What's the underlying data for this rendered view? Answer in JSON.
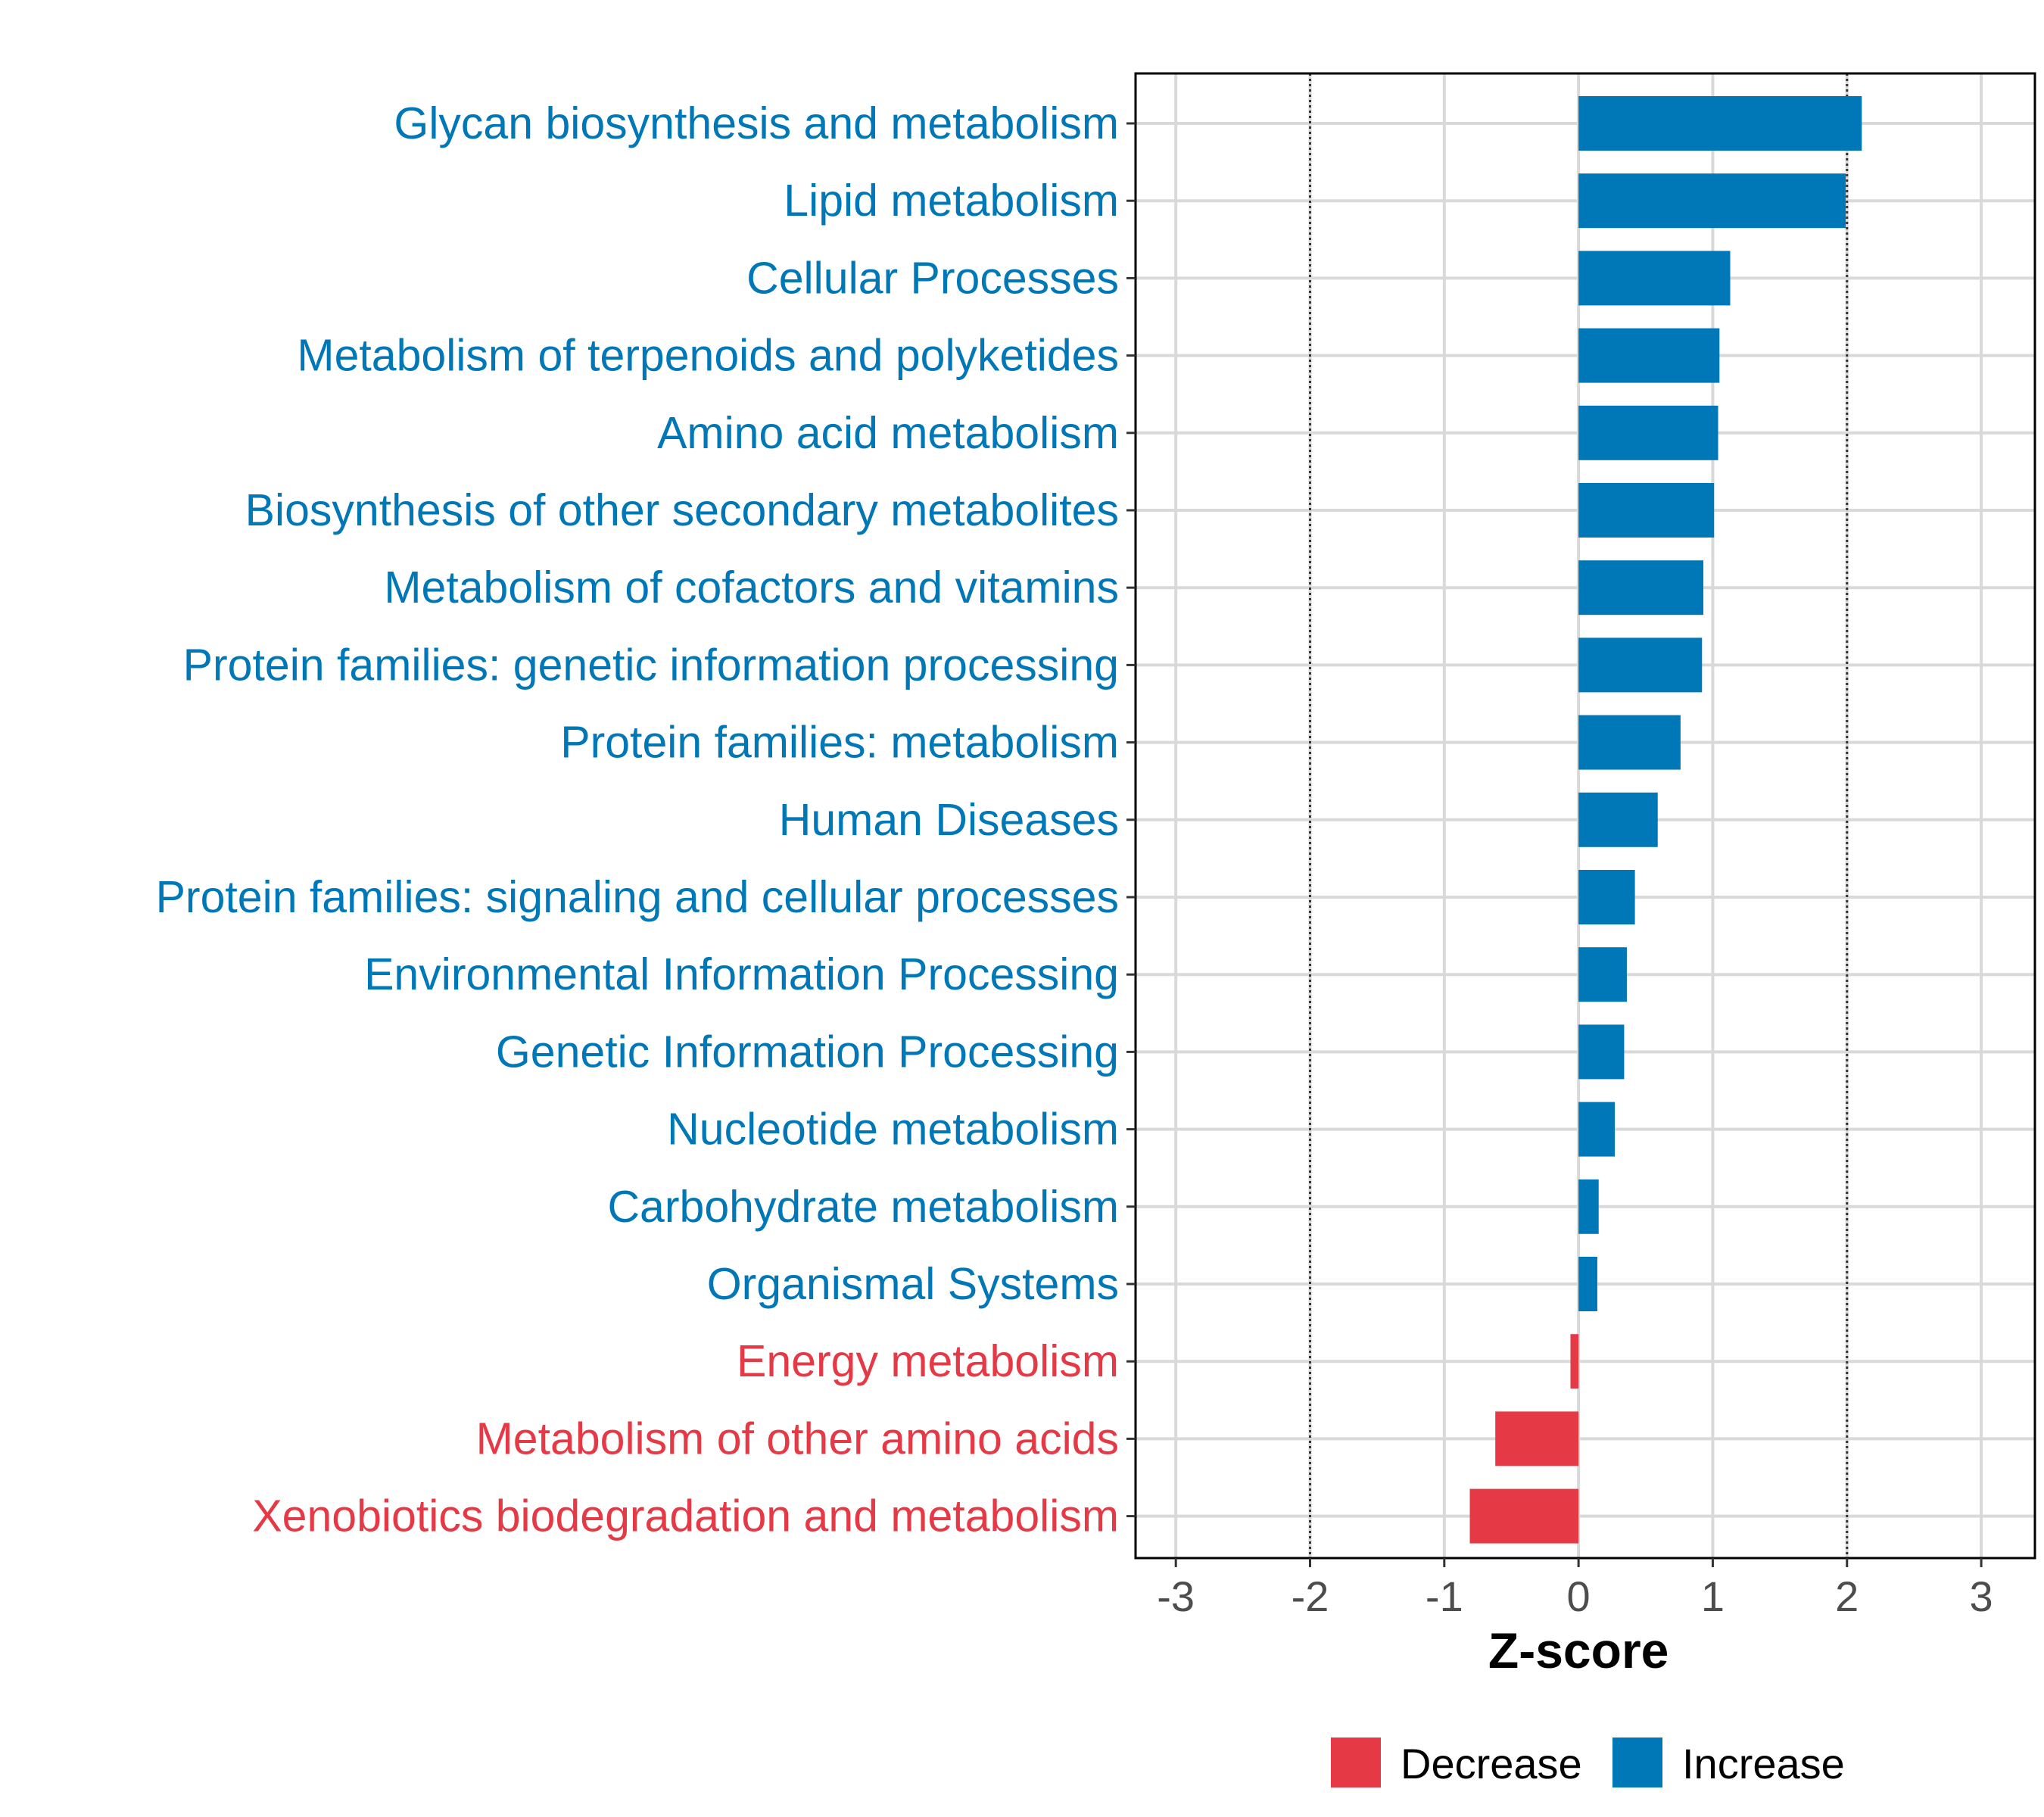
{
  "colors": {
    "increase": "#0077b6",
    "decrease": "#e63946",
    "grid": "#d9d9d9",
    "axis_text": "#4d4d4d",
    "frame": "#000000"
  },
  "chart_data": {
    "type": "bar",
    "orientation": "horizontal",
    "title": "",
    "xlabel": "Z-score",
    "ylabel": "",
    "xlim": [
      -3.3,
      3.4
    ],
    "xticks": [
      -3,
      -2,
      -1,
      0,
      1,
      2,
      3
    ],
    "xtick_labels": [
      "-3",
      "-2",
      "-1",
      "0",
      "1",
      "2",
      "3"
    ],
    "reference_lines": [
      -2,
      2
    ],
    "grid": true,
    "categories": [
      "Glycan biosynthesis and metabolism",
      "Lipid metabolism",
      "Cellular Processes",
      "Metabolism of terpenoids and polyketides",
      "Amino acid metabolism",
      "Biosynthesis of other secondary metabolites",
      "Metabolism of cofactors and vitamins",
      "Protein families: genetic information processing",
      "Protein families: metabolism",
      "Human Diseases",
      "Protein families: signaling and cellular processes",
      "Environmental Information Processing",
      "Genetic Information Processing",
      "Nucleotide metabolism",
      "Carbohydrate metabolism",
      "Organismal Systems",
      "Energy metabolism",
      "Metabolism of other amino acids",
      "Xenobiotics biodegradation and metabolism"
    ],
    "values": [
      2.11,
      1.99,
      1.13,
      1.05,
      1.04,
      1.01,
      0.93,
      0.92,
      0.76,
      0.59,
      0.42,
      0.36,
      0.34,
      0.27,
      0.15,
      0.14,
      -0.06,
      -0.62,
      -0.81
    ],
    "groups": [
      "Increase",
      "Increase",
      "Increase",
      "Increase",
      "Increase",
      "Increase",
      "Increase",
      "Increase",
      "Increase",
      "Increase",
      "Increase",
      "Increase",
      "Increase",
      "Increase",
      "Increase",
      "Increase",
      "Decrease",
      "Decrease",
      "Decrease"
    ],
    "legend": {
      "position": "bottom",
      "entries": [
        {
          "label": "Decrease",
          "group": "Decrease"
        },
        {
          "label": "Increase",
          "group": "Increase"
        }
      ]
    }
  }
}
